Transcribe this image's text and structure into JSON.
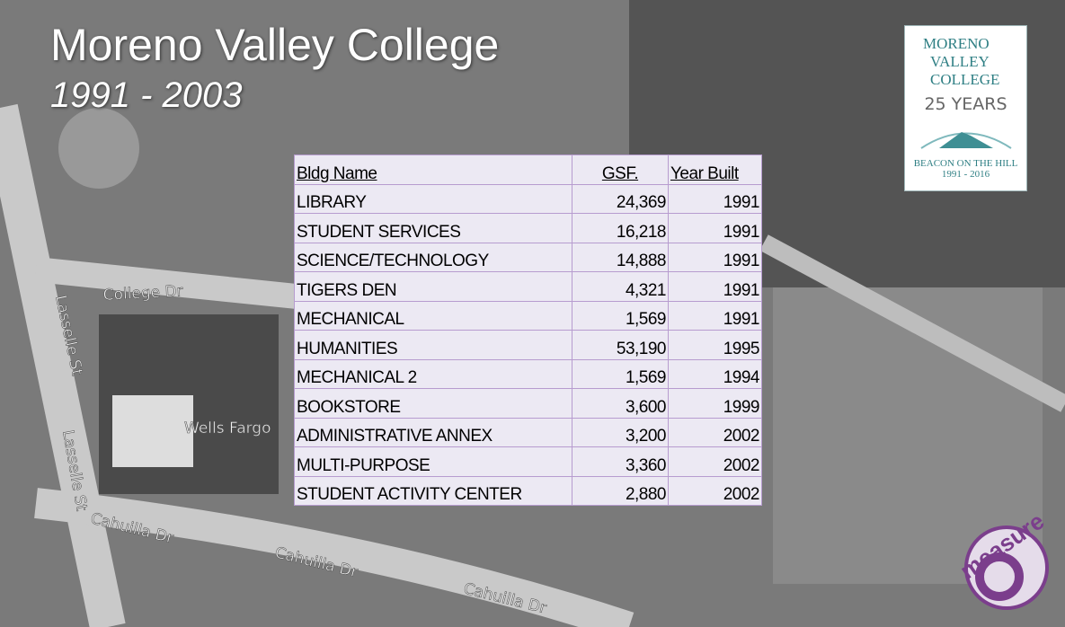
{
  "header": {
    "title": "Moreno Valley College",
    "subtitle": "1991 - 2003"
  },
  "table": {
    "headers": [
      "Bldg Name",
      "GSF.",
      "Year Built"
    ],
    "rows": [
      [
        "LIBRARY",
        "24,369",
        "1991"
      ],
      [
        "STUDENT SERVICES",
        "16,218",
        "1991"
      ],
      [
        "SCIENCE/TECHNOLOGY",
        "14,888",
        "1991"
      ],
      [
        "TIGERS DEN",
        "4,321",
        "1991"
      ],
      [
        "MECHANICAL",
        "1,569",
        "1991"
      ],
      [
        "HUMANITIES",
        "53,190",
        "1995"
      ],
      [
        "MECHANICAL 2",
        "1,569",
        "1994"
      ],
      [
        "BOOKSTORE",
        "3,600",
        "1999"
      ],
      [
        "ADMINISTRATIVE ANNEX",
        "3,200",
        "2002"
      ],
      [
        "MULTI-PURPOSE",
        "3,360",
        "2002"
      ],
      [
        "STUDENT ACTIVITY CENTER",
        "2,880",
        "2002"
      ]
    ]
  },
  "logo": {
    "line1": "MORENO",
    "line2": "VALLEY",
    "line3": "COLLEGE",
    "years": "25 YEARS",
    "motto": "BEACON ON THE HILL",
    "dates": "1991 - 2016"
  },
  "map_labels": [
    "College Dr",
    "Lasselle St",
    "Lasselle St",
    "Wells Fargo",
    "Cahuilla Dr",
    "Cahuilla Dr",
    "Cahuilla Dr"
  ],
  "badge": "measure"
}
